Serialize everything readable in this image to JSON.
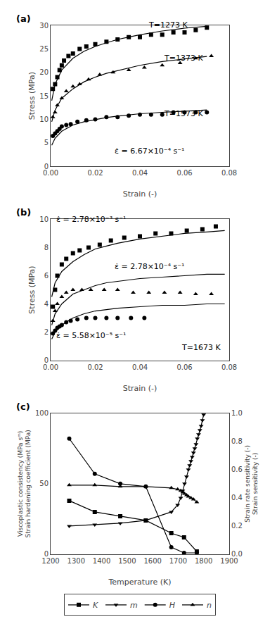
{
  "chart_data": [
    {
      "type": "scatter",
      "title": "(a)",
      "x_label": "Strain (-)",
      "y_label": "Stress (MPa)",
      "xlim": [
        0.0,
        0.08
      ],
      "ylim": [
        0,
        30
      ],
      "xticks": [
        {
          "value": 0.0,
          "label": "0.00"
        },
        0.02,
        0.04,
        0.06,
        0.08
      ],
      "yticks": [
        0,
        5,
        10,
        15,
        20,
        25,
        30
      ],
      "grid": false,
      "series": [
        {
          "marker": "square",
          "color": "black",
          "x": [
            0.001,
            0.002,
            0.003,
            0.004,
            0.005,
            0.006,
            0.008,
            0.01,
            0.013,
            0.016,
            0.02,
            0.025,
            0.03,
            0.035,
            0.04,
            0.045,
            0.05,
            0.055,
            0.06,
            0.065,
            0.07
          ],
          "y": [
            16.5,
            17.5,
            19.0,
            20.5,
            21.5,
            22.5,
            23.5,
            24.0,
            25.0,
            25.5,
            26.0,
            26.5,
            27.0,
            27.5,
            27.5,
            28.0,
            28.0,
            28.5,
            28.5,
            29.0,
            29.5
          ],
          "curve": {
            "x": [
              0.0005,
              0.002,
              0.005,
              0.01,
              0.015,
              0.02,
              0.025,
              0.03,
              0.035,
              0.04,
              0.05,
              0.06,
              0.07
            ],
            "y": [
              14.0,
              17.5,
              20.5,
              23.0,
              24.5,
              25.5,
              26.3,
              27.0,
              27.5,
              28.0,
              28.8,
              29.4,
              29.8
            ]
          }
        },
        {
          "marker": "triangle-up",
          "color": "black",
          "x": [
            0.001,
            0.002,
            0.003,
            0.005,
            0.007,
            0.01,
            0.013,
            0.017,
            0.022,
            0.028,
            0.035,
            0.042,
            0.05,
            0.058,
            0.065,
            0.072
          ],
          "y": [
            10.5,
            11.5,
            13.0,
            14.5,
            16.0,
            17.0,
            17.5,
            18.5,
            19.5,
            20.0,
            20.5,
            21.0,
            21.5,
            22.0,
            23.0,
            23.5
          ],
          "curve": {
            "x": [
              0.0005,
              0.002,
              0.005,
              0.01,
              0.015,
              0.02,
              0.025,
              0.03,
              0.035,
              0.04,
              0.05,
              0.06,
              0.07
            ],
            "y": [
              9.5,
              12.0,
              14.5,
              16.5,
              18.0,
              19.0,
              19.8,
              20.4,
              21.0,
              21.5,
              22.3,
              22.9,
              23.4
            ]
          }
        },
        {
          "marker": "circle",
          "color": "black",
          "x": [
            0.001,
            0.002,
            0.003,
            0.004,
            0.005,
            0.007,
            0.009,
            0.012,
            0.016,
            0.02,
            0.025,
            0.03,
            0.035,
            0.04,
            0.045,
            0.05,
            0.055,
            0.06,
            0.065,
            0.07
          ],
          "y": [
            6.5,
            7.0,
            7.5,
            8.0,
            8.5,
            8.8,
            9.0,
            9.5,
            9.8,
            10.0,
            10.5,
            10.5,
            10.8,
            11.0,
            11.0,
            11.0,
            11.5,
            11.5,
            11.5,
            11.5
          ],
          "curve": {
            "x": [
              0.0005,
              0.002,
              0.005,
              0.01,
              0.015,
              0.02,
              0.025,
              0.03,
              0.035,
              0.04,
              0.05,
              0.06,
              0.07
            ],
            "y": [
              4.5,
              6.0,
              7.5,
              8.8,
              9.5,
              10.0,
              10.4,
              10.7,
              11.0,
              11.2,
              11.5,
              11.8,
              12.0
            ]
          }
        }
      ],
      "annotations": [
        {
          "text": "T=1273 K",
          "x": 0.043,
          "y": 28.8
        },
        {
          "text": "T=1373 K",
          "x": 0.05,
          "y": 21.8
        },
        {
          "text": "T=1573 K",
          "x": 0.05,
          "y": 10.0
        },
        {
          "text": "ε̇ = 6.67×10⁻⁴ s⁻¹",
          "x": 0.028,
          "y": 2.0
        }
      ]
    },
    {
      "type": "scatter",
      "title": "(b)",
      "x_label": "Strain (-)",
      "y_label": "Stress (MPa)",
      "xlim": [
        0.0,
        0.08
      ],
      "ylim": [
        0,
        10
      ],
      "xticks": [
        {
          "value": 0.0,
          "label": "0.00"
        },
        0.02,
        0.04,
        0.06,
        0.08
      ],
      "yticks": [
        0,
        2,
        4,
        6,
        8,
        10
      ],
      "grid": false,
      "series": [
        {
          "marker": "square",
          "color": "black",
          "x": [
            0.001,
            0.002,
            0.003,
            0.005,
            0.007,
            0.01,
            0.013,
            0.017,
            0.022,
            0.027,
            0.033,
            0.04,
            0.047,
            0.054,
            0.061,
            0.068,
            0.074
          ],
          "y": [
            3.8,
            5.0,
            6.0,
            6.8,
            7.2,
            7.6,
            7.8,
            8.0,
            8.2,
            8.5,
            8.7,
            8.8,
            9.0,
            9.0,
            9.2,
            9.3,
            9.5
          ],
          "curve": {
            "x": [
              0.0005,
              0.002,
              0.005,
              0.01,
              0.015,
              0.02,
              0.025,
              0.03,
              0.04,
              0.05,
              0.06,
              0.07,
              0.078
            ],
            "y": [
              4.5,
              5.5,
              6.3,
              7.0,
              7.5,
              7.9,
              8.1,
              8.3,
              8.6,
              8.8,
              9.0,
              9.1,
              9.2
            ]
          }
        },
        {
          "marker": "triangle-up",
          "color": "black",
          "x": [
            0.001,
            0.002,
            0.003,
            0.005,
            0.007,
            0.01,
            0.014,
            0.018,
            0.024,
            0.03,
            0.037,
            0.044,
            0.051,
            0.058,
            0.065,
            0.072
          ],
          "y": [
            2.8,
            3.5,
            4.0,
            4.5,
            4.8,
            5.0,
            5.0,
            5.0,
            5.0,
            5.0,
            4.8,
            4.8,
            4.8,
            4.8,
            4.7,
            4.7
          ],
          "curve": {
            "x": [
              0.0005,
              0.002,
              0.005,
              0.01,
              0.015,
              0.02,
              0.025,
              0.03,
              0.04,
              0.05,
              0.06,
              0.07,
              0.078
            ],
            "y": [
              2.5,
              3.3,
              4.0,
              4.7,
              5.0,
              5.3,
              5.5,
              5.6,
              5.8,
              5.9,
              6.0,
              6.1,
              6.1
            ]
          }
        },
        {
          "marker": "circle",
          "color": "black",
          "x": [
            0.001,
            0.002,
            0.003,
            0.004,
            0.005,
            0.007,
            0.009,
            0.012,
            0.016,
            0.02,
            0.025,
            0.03,
            0.036,
            0.042
          ],
          "y": [
            1.9,
            2.1,
            2.3,
            2.4,
            2.5,
            2.7,
            2.8,
            2.9,
            3.0,
            3.0,
            3.0,
            3.0,
            3.0,
            3.0
          ],
          "curve": {
            "x": [
              0.0005,
              0.002,
              0.005,
              0.01,
              0.015,
              0.02,
              0.025,
              0.03,
              0.04,
              0.05,
              0.06,
              0.07,
              0.078
            ],
            "y": [
              1.5,
              2.0,
              2.5,
              3.0,
              3.3,
              3.5,
              3.6,
              3.7,
              3.8,
              3.9,
              3.9,
              4.0,
              4.0
            ]
          }
        }
      ],
      "annotations": [
        {
          "text": "ε̇ = 2.78×10⁻³ s⁻¹",
          "x": 0.002,
          "y": 9.55
        },
        {
          "text": "ε̇ = 2.78×10⁻⁴ s⁻¹",
          "x": 0.028,
          "y": 6.2
        },
        {
          "text": "ε̇ = 5.58×10⁻⁵ s⁻¹",
          "x": 0.002,
          "y": 1.35
        },
        {
          "text": "T=1673 K",
          "x": 0.058,
          "y": 0.5
        }
      ]
    },
    {
      "type": "line",
      "title": "(c)",
      "x_label": "Temperature (K)",
      "y_label": [
        "Viscoplastic consistency (MPa sᵐ)",
        "Strain hardening coefficient (MPa)"
      ],
      "y2_label": [
        "Strain rate sensitivity (-)",
        "Strain sensitivity (-)"
      ],
      "xlim": [
        1200,
        1900
      ],
      "ylim": [
        0,
        100
      ],
      "y2lim": [
        0.0,
        1.0
      ],
      "xticks": [
        1200,
        1300,
        1400,
        1500,
        1600,
        1700,
        1800,
        1900
      ],
      "yticks": [
        0,
        50,
        100
      ],
      "y2ticks": [
        {
          "value": 0.0,
          "label": "0.0"
        },
        0.2,
        0.4,
        0.6,
        0.8,
        {
          "value": 1.0,
          "label": "1.0"
        }
      ],
      "grid": false,
      "legend": "bottom",
      "series": [
        {
          "name": "K",
          "marker": "square",
          "color": "black",
          "axis": "y",
          "x": [
            1273,
            1373,
            1473,
            1573,
            1673,
            1723,
            1773
          ],
          "values": [
            38,
            30,
            27,
            24,
            15,
            12,
            2
          ]
        },
        {
          "name": "m",
          "marker": "triangle-down",
          "color": "black",
          "axis": "y2",
          "x": [
            1273,
            1373,
            1473,
            1573,
            1673,
            1698,
            1710,
            1718,
            1725,
            1733,
            1740,
            1745,
            1750,
            1755,
            1760,
            1765,
            1770,
            1775,
            1780,
            1785,
            1790,
            1795,
            1800
          ],
          "values": [
            0.2,
            0.21,
            0.22,
            0.24,
            0.3,
            0.35,
            0.4,
            0.45,
            0.5,
            0.55,
            0.6,
            0.63,
            0.66,
            0.69,
            0.72,
            0.75,
            0.78,
            0.82,
            0.85,
            0.88,
            0.91,
            0.95,
            0.99
          ]
        },
        {
          "name": "H",
          "marker": "circle",
          "color": "black",
          "axis": "y",
          "x": [
            1273,
            1373,
            1473,
            1573,
            1673,
            1723,
            1773
          ],
          "values": [
            82,
            57,
            50,
            48,
            5,
            1,
            1
          ]
        },
        {
          "name": "n",
          "marker": "triangle-up",
          "color": "black",
          "axis": "y2",
          "x": [
            1273,
            1373,
            1473,
            1573,
            1673,
            1698,
            1710,
            1718,
            1725,
            1733,
            1740,
            1750,
            1760,
            1773
          ],
          "values": [
            0.49,
            0.49,
            0.48,
            0.48,
            0.47,
            0.46,
            0.45,
            0.44,
            0.43,
            0.42,
            0.41,
            0.4,
            0.39,
            0.37
          ]
        }
      ]
    }
  ]
}
